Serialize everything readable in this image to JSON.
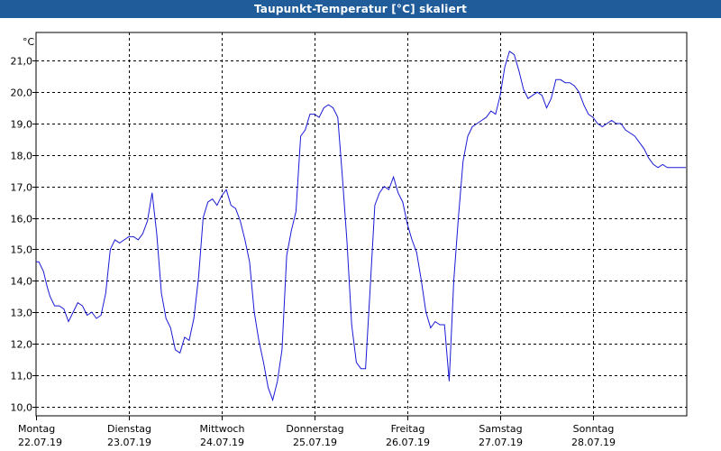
{
  "title": "Taupunkt-Temperatur [°C] skaliert",
  "colors": {
    "titlebar": "#1f5c99",
    "line": "#1a1ad6",
    "grid": "#000000"
  },
  "chart_data": {
    "type": "line",
    "title": "Taupunkt-Temperatur [°C] skaliert",
    "ylabel": "°C",
    "ylim": [
      9.7,
      21.9
    ],
    "y_ticks": [
      "10,0",
      "11,0",
      "12,0",
      "13,0",
      "14,0",
      "15,0",
      "16,0",
      "17,0",
      "18,0",
      "19,0",
      "20,0",
      "21,0"
    ],
    "x_ticks": [
      {
        "day": "Montag",
        "date": "22.07.19"
      },
      {
        "day": "Dienstag",
        "date": "23.07.19"
      },
      {
        "day": "Mittwoch",
        "date": "24.07.19"
      },
      {
        "day": "Donnerstag",
        "date": "25.07.19"
      },
      {
        "day": "Freitag",
        "date": "26.07.19"
      },
      {
        "day": "Samstag",
        "date": "27.07.19"
      },
      {
        "day": "Sonntag",
        "date": "28.07.19"
      }
    ],
    "xlim_days": [
      0,
      7.0
    ],
    "grid": true,
    "series": [
      {
        "x": [
          0.0,
          0.03,
          0.08,
          0.12,
          0.15,
          0.2,
          0.25,
          0.3,
          0.35,
          0.4,
          0.45,
          0.5,
          0.55,
          0.6,
          0.65,
          0.7,
          0.75,
          0.8,
          0.85,
          0.9,
          0.95,
          1.0,
          1.05,
          1.1,
          1.15,
          1.2,
          1.25,
          1.3,
          1.35,
          1.4,
          1.45,
          1.5,
          1.55,
          1.6,
          1.65,
          1.7,
          1.75,
          1.8,
          1.85,
          1.9,
          1.95,
          2.0,
          2.05,
          2.1,
          2.15,
          2.2,
          2.25,
          2.3,
          2.35,
          2.4,
          2.45,
          2.5,
          2.55,
          2.6,
          2.65,
          2.7,
          2.75,
          2.8,
          2.85,
          2.9,
          2.95,
          3.0,
          3.05,
          3.1,
          3.15,
          3.2,
          3.25,
          3.3,
          3.35,
          3.4,
          3.45,
          3.5,
          3.55,
          3.6,
          3.65,
          3.7,
          3.75,
          3.8,
          3.85,
          3.9,
          3.95,
          4.0,
          4.05,
          4.1,
          4.15,
          4.2,
          4.25,
          4.3,
          4.35,
          4.4,
          4.45,
          4.5,
          4.55,
          4.6,
          4.65,
          4.7,
          4.75,
          4.8,
          4.85,
          4.9,
          4.95,
          5.0,
          5.05,
          5.1,
          5.15,
          5.2,
          5.25,
          5.3,
          5.35,
          5.4,
          5.45,
          5.5,
          5.55,
          5.6,
          5.65,
          5.7,
          5.75,
          5.8,
          5.85,
          5.9,
          5.95,
          6.0,
          6.05,
          6.1,
          6.15,
          6.2,
          6.25,
          6.3,
          6.35,
          6.4,
          6.45,
          6.5,
          6.55,
          6.6,
          6.65,
          6.7,
          6.75,
          6.8,
          6.85,
          6.9,
          6.95,
          7.0
        ],
        "y": [
          14.6,
          14.6,
          14.3,
          13.8,
          13.5,
          13.2,
          13.2,
          13.1,
          12.7,
          13.0,
          13.3,
          13.2,
          12.9,
          13.0,
          12.8,
          12.9,
          13.6,
          15.0,
          15.3,
          15.2,
          15.3,
          15.4,
          15.4,
          15.3,
          15.5,
          15.9,
          16.8,
          15.5,
          13.6,
          12.8,
          12.5,
          11.8,
          11.7,
          12.2,
          12.1,
          12.8,
          14.1,
          16.0,
          16.5,
          16.6,
          16.4,
          16.7,
          16.9,
          16.4,
          16.3,
          15.9,
          15.3,
          14.6,
          13.0,
          12.1,
          11.4,
          10.6,
          10.2,
          10.8,
          11.8,
          14.8,
          15.6,
          16.2,
          18.6,
          18.8,
          19.3,
          19.3,
          19.2,
          19.5,
          19.6,
          19.5,
          19.2,
          17.3,
          15.2,
          12.6,
          11.4,
          11.2,
          11.2,
          13.8,
          16.4,
          16.8,
          17.0,
          16.9,
          17.3,
          16.8,
          16.5,
          15.8,
          15.3,
          14.9,
          14.0,
          13.0,
          12.5,
          12.7,
          12.6,
          12.6,
          10.8,
          14.0,
          16.0,
          17.8,
          18.6,
          18.9,
          19.0,
          19.1,
          19.2,
          19.4,
          19.3,
          19.9,
          20.8,
          21.3,
          21.2,
          20.7,
          20.1,
          19.8,
          19.9,
          20.0,
          19.9,
          19.5,
          19.8,
          20.4,
          20.4,
          20.3,
          20.3,
          20.2,
          20.0,
          19.6,
          19.3,
          19.2,
          19.0,
          18.9,
          19.0,
          19.1,
          19.0,
          19.0,
          18.8,
          18.7,
          18.6,
          18.4,
          18.2,
          17.9,
          17.7,
          17.6,
          17.7,
          17.6,
          17.6,
          17.6,
          17.6,
          17.6
        ]
      }
    ]
  }
}
